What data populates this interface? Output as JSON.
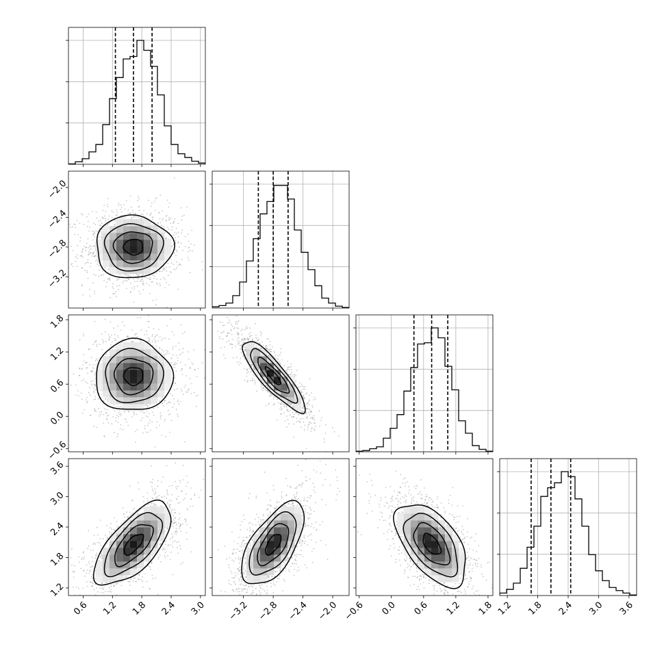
{
  "chart_data": {
    "type": "corner",
    "parameters": [
      {
        "ticks": [
          "0.6",
          "1.2",
          "1.8",
          "2.4",
          "3.0"
        ],
        "range": [
          0.3,
          3.1
        ],
        "quantiles": [
          1.26,
          1.63,
          2.01
        ]
      },
      {
        "ticks": [
          "−3.2",
          "−2.8",
          "−2.4",
          "−2.0"
        ],
        "range": [
          -3.62,
          -1.78
        ],
        "quantiles": [
          -3.0,
          -2.8,
          -2.6
        ]
      },
      {
        "ticks": [
          "−0.6",
          "0.0",
          "0.6",
          "1.2",
          "1.8"
        ],
        "range": [
          -0.66,
          1.89
        ],
        "quantiles": [
          0.42,
          0.75,
          1.05
        ]
      },
      {
        "ticks": [
          "1.2",
          "1.8",
          "2.4",
          "3.0",
          "3.6"
        ],
        "range": [
          1.05,
          3.75
        ],
        "quantiles": [
          1.67,
          2.06,
          2.45
        ]
      }
    ],
    "histograms": [
      [
        0.003,
        0.02,
        0.045,
        0.1,
        0.16,
        0.32,
        0.53,
        0.7,
        0.85,
        0.87,
        1.0,
        0.92,
        0.79,
        0.56,
        0.31,
        0.16,
        0.085,
        0.055,
        0.025,
        0.01
      ],
      [
        0.01,
        0.02,
        0.04,
        0.1,
        0.21,
        0.38,
        0.56,
        0.76,
        0.86,
        0.99,
        0.99,
        0.88,
        0.63,
        0.45,
        0.31,
        0.18,
        0.08,
        0.04,
        0.015,
        0.005
      ],
      [
        0.005,
        0.01,
        0.025,
        0.04,
        0.11,
        0.19,
        0.3,
        0.49,
        0.68,
        0.87,
        0.88,
        1.0,
        0.92,
        0.69,
        0.5,
        0.25,
        0.15,
        0.05,
        0.02,
        0.005
      ],
      [
        0.02,
        0.05,
        0.1,
        0.22,
        0.39,
        0.56,
        0.8,
        0.87,
        0.91,
        1.0,
        0.96,
        0.78,
        0.56,
        0.33,
        0.2,
        0.12,
        0.065,
        0.04,
        0.02,
        0.005
      ]
    ],
    "correlations": [
      [
        1,
        0,
        0,
        0
      ],
      [
        0,
        1,
        0,
        0
      ],
      [
        0,
        -0.86,
        1,
        0
      ],
      [
        0.67,
        0.62,
        -0.55,
        1
      ]
    ],
    "grid": true,
    "title": "",
    "xlabel": "",
    "ylabel": ""
  }
}
